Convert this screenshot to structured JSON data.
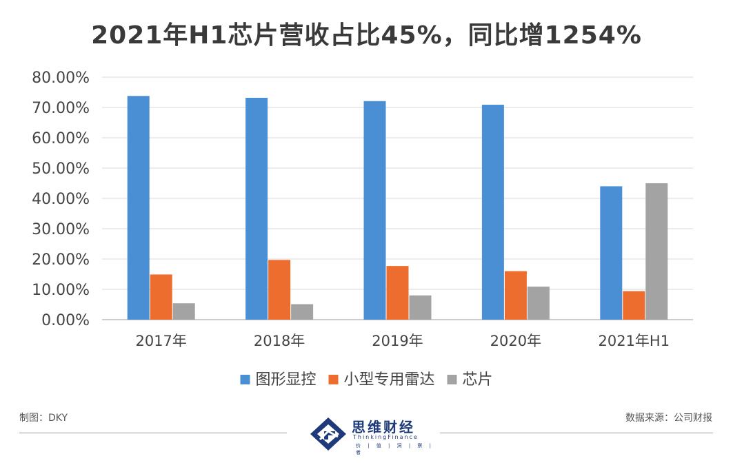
{
  "title": "2021年H1芯片营收占比45%，同比增1254%",
  "footer": {
    "left": "制图：DKY",
    "right": "数据来源：公司财报"
  },
  "brand": {
    "name": "思维财经",
    "sub": "ThinkingFinance",
    "tagline": "价 | 值 | 洞 | 察 | 者",
    "color": "#1f3a7a"
  },
  "chart_data": {
    "type": "bar",
    "categories": [
      "2017年",
      "2018年",
      "2019年",
      "2020年",
      "2021年H1"
    ],
    "series": [
      {
        "name": "图形显控",
        "color": "#4a8fd4",
        "values": [
          73.8,
          73.2,
          72.1,
          70.9,
          44.0
        ]
      },
      {
        "name": "小型专用雷达",
        "color": "#ec6d2d",
        "values": [
          14.9,
          19.7,
          17.7,
          16.0,
          9.4
        ]
      },
      {
        "name": "芯片",
        "color": "#a3a3a3",
        "values": [
          5.4,
          5.1,
          8.0,
          10.9,
          45.0
        ]
      }
    ],
    "ylim": [
      0,
      80
    ],
    "yticks": [
      "0.00%",
      "10.00%",
      "20.00%",
      "30.00%",
      "40.00%",
      "50.00%",
      "60.00%",
      "70.00%",
      "80.00%"
    ],
    "grid": true,
    "legend": "bottom-center"
  }
}
